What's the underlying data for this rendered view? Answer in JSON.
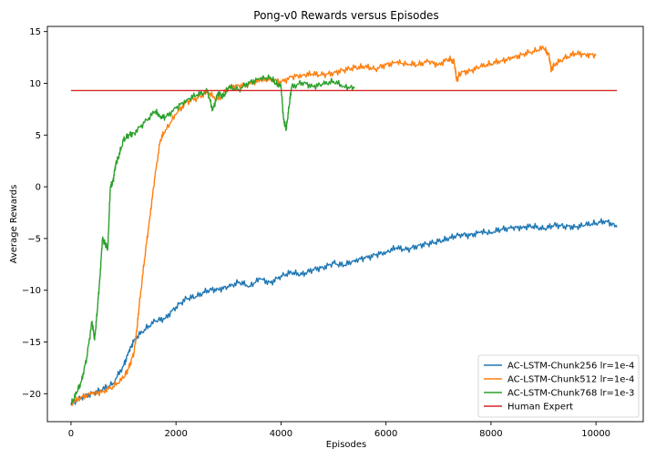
{
  "chart_data": {
    "type": "line",
    "title": "Pong-v0 Rewards versus Episodes",
    "xlabel": "Episodes",
    "ylabel": "Average Rewards",
    "xlim": [
      -450,
      10900
    ],
    "ylim": [
      -22.7,
      15.5
    ],
    "xticks": [
      0,
      2000,
      4000,
      6000,
      8000,
      10000
    ],
    "yticks": [
      -20,
      -15,
      -10,
      -5,
      0,
      5,
      10,
      15
    ],
    "grid": false,
    "legend_position": "lower-right",
    "series": [
      {
        "name": "AC-LSTM-Chunk256 lr=1e-4",
        "color": "#1f77b4",
        "x": [
          0,
          200,
          400,
          600,
          800,
          1000,
          1100,
          1200,
          1400,
          1600,
          1800,
          2000,
          2200,
          2400,
          2600,
          2800,
          3000,
          3200,
          3400,
          3600,
          3800,
          4000,
          4200,
          4400,
          4600,
          4800,
          5000,
          5200,
          5400,
          5600,
          5800,
          6000,
          6200,
          6400,
          6600,
          6800,
          7000,
          7200,
          7400,
          7600,
          7800,
          8000,
          8200,
          8400,
          8600,
          8800,
          9000,
          9200,
          9400,
          9600,
          9800,
          10000,
          10200,
          10400
        ],
        "y": [
          -21,
          -20.3,
          -20,
          -19.6,
          -19,
          -17.3,
          -16,
          -14.8,
          -13.8,
          -13,
          -12.7,
          -11.6,
          -10.8,
          -10.6,
          -10,
          -9.9,
          -9.7,
          -9.2,
          -9.6,
          -8.9,
          -9.3,
          -8.6,
          -8.3,
          -8.5,
          -8.0,
          -7.8,
          -7.4,
          -7.6,
          -7.1,
          -6.9,
          -6.6,
          -6.3,
          -5.9,
          -6.1,
          -5.7,
          -5.5,
          -5.3,
          -5.0,
          -4.6,
          -4.7,
          -4.4,
          -4.4,
          -4.1,
          -4.0,
          -3.9,
          -3.8,
          -4.1,
          -3.7,
          -3.8,
          -3.9,
          -3.7,
          -3.5,
          -3.3,
          -3.9
        ]
      },
      {
        "name": "AC-LSTM-Chunk512 lr=1e-4",
        "color": "#ff7f0e",
        "x": [
          0,
          200,
          400,
          600,
          800,
          1000,
          1100,
          1200,
          1250,
          1300,
          1400,
          1500,
          1600,
          1700,
          1800,
          2000,
          2200,
          2400,
          2600,
          2800,
          3000,
          3200,
          3400,
          3600,
          3800,
          4000,
          4200,
          4400,
          4600,
          4800,
          5000,
          5200,
          5400,
          5600,
          5800,
          6000,
          6200,
          6400,
          6600,
          6800,
          7000,
          7200,
          7300,
          7350,
          7400,
          7600,
          7800,
          8000,
          8200,
          8400,
          8600,
          8800,
          9000,
          9100,
          9150,
          9200,
          9400,
          9600,
          9800,
          10000
        ],
        "y": [
          -21,
          -20.3,
          -20,
          -19.8,
          -19.3,
          -18.5,
          -17.5,
          -16,
          -14,
          -11.5,
          -7,
          -3,
          1,
          4.5,
          5.5,
          7,
          8.2,
          8.6,
          9.1,
          8.4,
          9.6,
          9.8,
          9.9,
          10.3,
          10.4,
          10.1,
          10.6,
          10.8,
          10.9,
          10.8,
          11.0,
          11.3,
          11.5,
          11.6,
          11.4,
          11.8,
          12.0,
          11.9,
          11.8,
          12.1,
          11.8,
          12.4,
          12.0,
          10.2,
          11.0,
          11.2,
          11.6,
          11.9,
          12.2,
          12.4,
          12.8,
          13.1,
          13.4,
          12.8,
          11.3,
          11.8,
          12.4,
          12.9,
          12.8,
          12.7
        ]
      },
      {
        "name": "AC-LSTM-Chunk768 lr=1e-3",
        "color": "#2ca02c",
        "x": [
          0,
          100,
          200,
          300,
          400,
          450,
          500,
          550,
          600,
          650,
          700,
          750,
          800,
          850,
          900,
          1000,
          1100,
          1200,
          1400,
          1600,
          1700,
          1800,
          2000,
          2200,
          2400,
          2600,
          2700,
          2800,
          2900,
          3000,
          3200,
          3400,
          3600,
          3800,
          3900,
          4000,
          4050,
          4100,
          4150,
          4200,
          4400,
          4600,
          4800,
          5000,
          5200,
          5400
        ],
        "y": [
          -21,
          -20,
          -18.8,
          -16.5,
          -13,
          -14.8,
          -12,
          -8.8,
          -5,
          -5.5,
          -6,
          0,
          0.5,
          2.2,
          2.8,
          4.5,
          5,
          5.2,
          6.2,
          7.3,
          6.8,
          6.7,
          7.6,
          8.4,
          8.9,
          9.2,
          7.4,
          9.1,
          8.7,
          9.6,
          9.4,
          10.1,
          10.4,
          10.6,
          10.0,
          9.7,
          6.5,
          5.6,
          7.6,
          9.6,
          10.1,
          9.7,
          9.9,
          10.2,
          9.7,
          9.5
        ]
      },
      {
        "name": "Human Expert",
        "color": "#d62728",
        "x": [
          0,
          10400
        ],
        "y": [
          9.3,
          9.3
        ]
      }
    ]
  }
}
